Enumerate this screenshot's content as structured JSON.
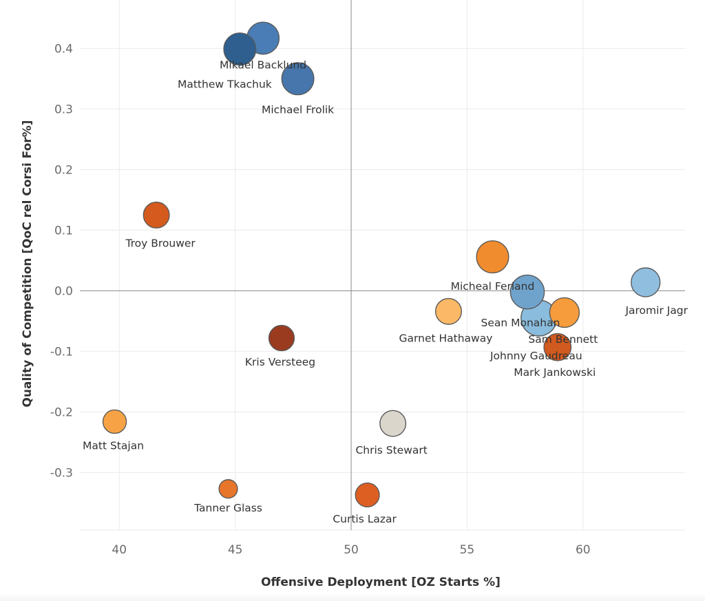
{
  "chart_data": {
    "type": "scatter",
    "title": "",
    "xlabel": "Offensive Deployment [OZ Starts %]",
    "ylabel": "Quality of Competition [QoC rel Corsi For%]",
    "xlim": [
      38.3,
      64.4
    ],
    "ylim": [
      -0.395,
      0.48
    ],
    "x_ticks": [
      40,
      45,
      50,
      55,
      60
    ],
    "y_ticks": [
      0.4,
      0.3,
      0.2,
      0.1,
      0.0,
      -0.1,
      -0.2,
      -0.3
    ],
    "x_tick_labels": [
      "40",
      "45",
      "50",
      "55",
      "60"
    ],
    "y_tick_labels": [
      "0.4",
      "0.3",
      "0.2",
      "0.1",
      "0.0",
      "-0.1",
      "-0.2",
      "-0.3"
    ],
    "grid": true,
    "reference_lines": {
      "x": 50,
      "y": 0.0
    },
    "size_encoding": "relative bubble size",
    "points": [
      {
        "name": "Mikael Backlund",
        "x": 46.2,
        "y": 0.417,
        "size": 0.85,
        "color": "#4a7db5"
      },
      {
        "name": "Matthew Tkachuk",
        "x": 45.2,
        "y": 0.399,
        "size": 0.85,
        "color": "#2f5f8f"
      },
      {
        "name": "Michael Frolik",
        "x": 47.7,
        "y": 0.35,
        "size": 0.85,
        "color": "#4676ab"
      },
      {
        "name": "Troy Brouwer",
        "x": 41.6,
        "y": 0.125,
        "size": 0.6,
        "color": "#d45a1e"
      },
      {
        "name": "Micheal Ferland",
        "x": 56.1,
        "y": 0.056,
        "size": 0.85,
        "color": "#f08b2e"
      },
      {
        "name": "Jaromir Jagr",
        "x": 62.7,
        "y": 0.014,
        "size": 0.72,
        "color": "#8fbedf"
      },
      {
        "name": "Sean Monahan",
        "x": 57.6,
        "y": -0.002,
        "size": 0.92,
        "color": "#6fa3cc"
      },
      {
        "name": "Garnet Hathaway",
        "x": 54.2,
        "y": -0.034,
        "size": 0.6,
        "color": "#fbb866"
      },
      {
        "name": "Sam Bennett",
        "x": 59.2,
        "y": -0.036,
        "size": 0.75,
        "color": "#f79c3c"
      },
      {
        "name": "Johnny Gaudreau",
        "x": 58.1,
        "y": -0.045,
        "size": 1.0,
        "color": "#8abcdd"
      },
      {
        "name": "Mark Jankowski",
        "x": 58.9,
        "y": -0.093,
        "size": 0.65,
        "color": "#d05a1f"
      },
      {
        "name": "Kris Versteeg",
        "x": 47.0,
        "y": -0.078,
        "size": 0.58,
        "color": "#9a3b20"
      },
      {
        "name": "Matt Stajan",
        "x": 39.8,
        "y": -0.216,
        "size": 0.5,
        "color": "#f7a345"
      },
      {
        "name": "Chris Stewart",
        "x": 51.8,
        "y": -0.219,
        "size": 0.6,
        "color": "#dad6cc"
      },
      {
        "name": "Tanner Glass",
        "x": 44.7,
        "y": -0.327,
        "size": 0.3,
        "color": "#e7752a"
      },
      {
        "name": "Curtis Lazar",
        "x": 50.7,
        "y": -0.337,
        "size": 0.52,
        "color": "#dd5f22"
      }
    ]
  }
}
